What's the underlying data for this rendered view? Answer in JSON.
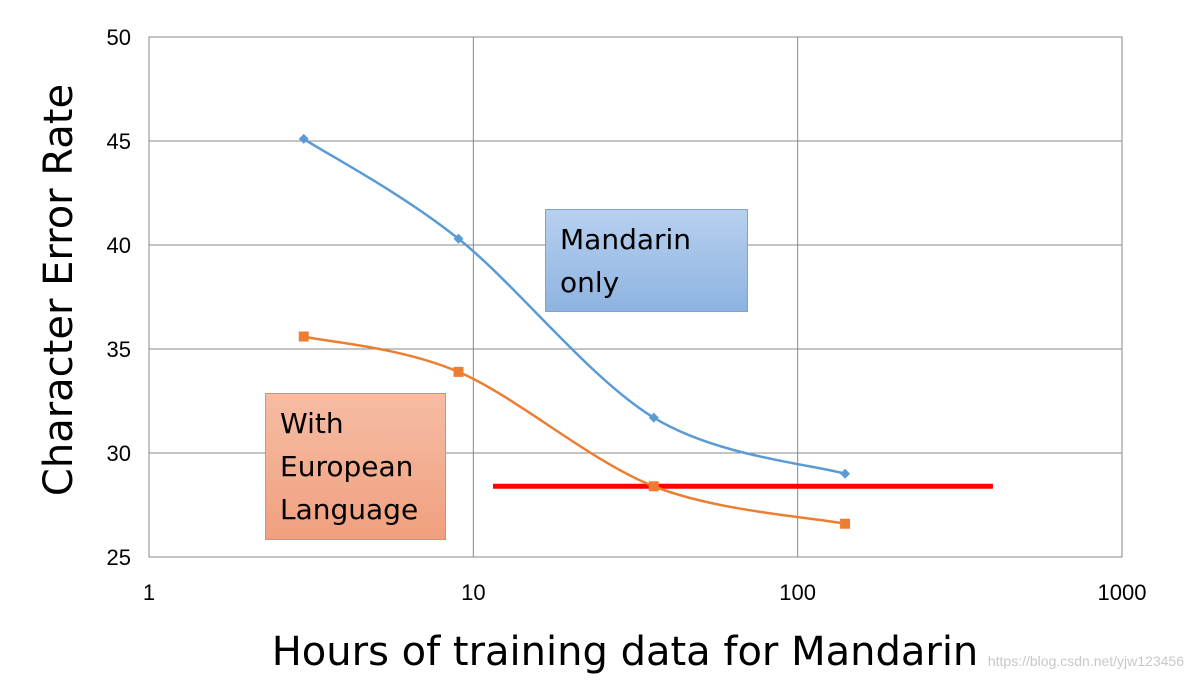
{
  "chart_data": {
    "type": "line",
    "xscale": "log",
    "xlim": [
      1,
      1000
    ],
    "ylim": [
      25,
      50
    ],
    "xticks": [
      "1",
      "10",
      "100",
      "1000"
    ],
    "yticks": [
      "25",
      "30",
      "35",
      "40",
      "45",
      "50"
    ],
    "xlabel": "Hours of training data for Mandarin",
    "ylabel": "Character Error Rate",
    "grid": true,
    "series": [
      {
        "name": "Mandarin only",
        "color": "#5b9bd5",
        "marker": "diamond",
        "x": [
          3,
          9,
          36,
          140
        ],
        "y": [
          45.1,
          40.3,
          31.7,
          29.0
        ]
      },
      {
        "name": "With European Language",
        "color": "#ed7d31",
        "marker": "square",
        "x": [
          3,
          9,
          36,
          140
        ],
        "y": [
          35.6,
          33.9,
          28.4,
          26.6
        ]
      }
    ],
    "reference_line": {
      "color": "#ff0000",
      "y": 28.4,
      "x": [
        11.5,
        400
      ]
    },
    "annotations": [
      {
        "text": "Mandarin only",
        "lines": [
          "Mandarin",
          "only"
        ],
        "color": "#9dbde6"
      },
      {
        "text": "With European Language",
        "lines": [
          "With",
          "European",
          "Language"
        ],
        "color": "#f3ad8f"
      }
    ]
  },
  "watermark": "https://blog.csdn.net/yjw123456"
}
